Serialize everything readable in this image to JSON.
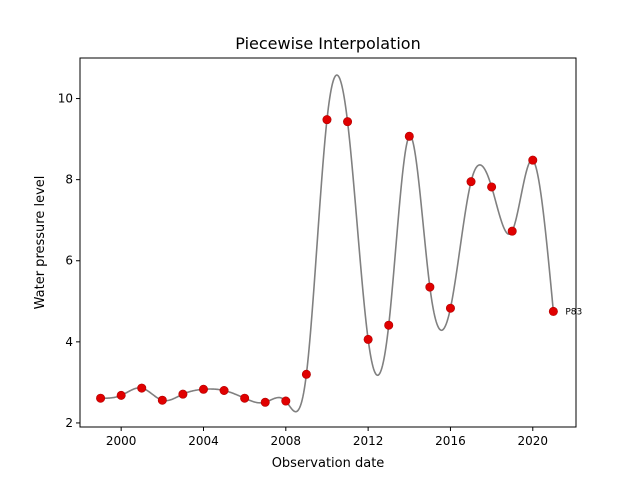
{
  "chart_data": {
    "type": "scatter",
    "title": "Piecewise Interpolation",
    "xlabel": "Observation date",
    "ylabel": "Water pressure level",
    "xlim": [
      1998.0,
      2022.1
    ],
    "ylim": [
      1.9,
      11.0
    ],
    "xticks": [
      2000,
      2004,
      2008,
      2012,
      2016,
      2020
    ],
    "yticks": [
      2,
      4,
      6,
      8,
      10
    ],
    "grid": false,
    "legend": "none",
    "curve_color": "#808080",
    "point_color": "#e00000",
    "points": [
      {
        "x": 1999,
        "y": 2.61
      },
      {
        "x": 2000,
        "y": 2.68
      },
      {
        "x": 2001,
        "y": 2.86
      },
      {
        "x": 2002,
        "y": 2.56
      },
      {
        "x": 2003,
        "y": 2.71
      },
      {
        "x": 2004,
        "y": 2.83
      },
      {
        "x": 2005,
        "y": 2.8
      },
      {
        "x": 2006,
        "y": 2.61
      },
      {
        "x": 2007,
        "y": 2.51
      },
      {
        "x": 2008,
        "y": 2.54
      },
      {
        "x": 2009,
        "y": 3.2
      },
      {
        "x": 2010,
        "y": 9.48
      },
      {
        "x": 2011,
        "y": 9.43
      },
      {
        "x": 2012,
        "y": 4.06
      },
      {
        "x": 2013,
        "y": 4.41
      },
      {
        "x": 2014,
        "y": 9.07
      },
      {
        "x": 2015,
        "y": 5.35
      },
      {
        "x": 2016,
        "y": 4.83
      },
      {
        "x": 2017,
        "y": 7.95
      },
      {
        "x": 2018,
        "y": 7.82
      },
      {
        "x": 2019,
        "y": 6.73
      },
      {
        "x": 2020,
        "y": 8.48
      },
      {
        "x": 2021,
        "y": 4.75
      }
    ],
    "annotation": {
      "text": "P83",
      "x": 2021,
      "y": 4.75
    }
  }
}
